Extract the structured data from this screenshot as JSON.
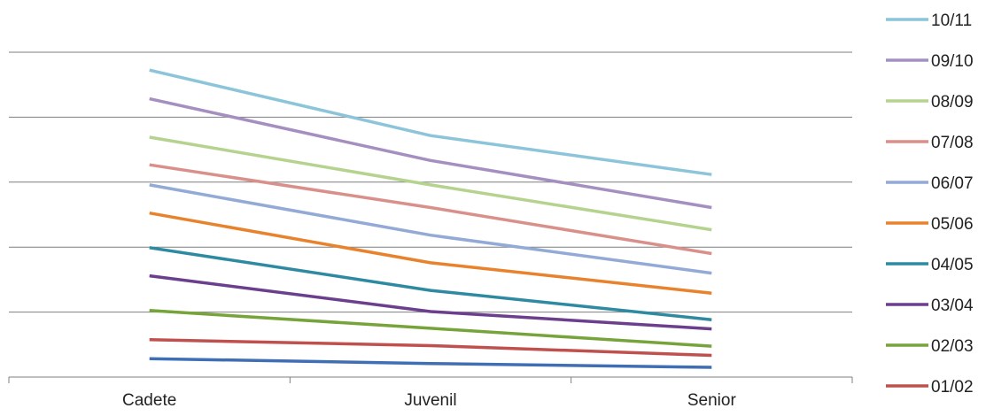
{
  "chart_data": {
    "type": "line",
    "categories": [
      "Cadete",
      "Juvenil",
      "Senior"
    ],
    "ylim": [
      0,
      60
    ],
    "grid": true,
    "legend_position": "right",
    "series": [
      {
        "name": "01/02",
        "color": "#c0504d",
        "values": [
          6.9,
          5.8,
          4.0
        ]
      },
      {
        "name": "02/03",
        "color": "#77a33b",
        "values": [
          12.3,
          9.0,
          5.7
        ]
      },
      {
        "name": "03/04",
        "color": "#6b3f8e",
        "values": [
          18.7,
          12.1,
          8.9
        ]
      },
      {
        "name": "04/05",
        "color": "#2e8aa0",
        "values": [
          23.9,
          16.0,
          10.6
        ]
      },
      {
        "name": "05/06",
        "color": "#e8822c",
        "values": [
          30.3,
          21.1,
          15.5
        ]
      },
      {
        "name": "06/07",
        "color": "#93a9d6",
        "values": [
          35.5,
          26.2,
          19.2
        ]
      },
      {
        "name": "07/08",
        "color": "#d9908b",
        "values": [
          39.2,
          31.3,
          22.8
        ]
      },
      {
        "name": "08/09",
        "color": "#b5d38e",
        "values": [
          44.3,
          35.5,
          27.2
        ]
      },
      {
        "name": "09/10",
        "color": "#a48fc0",
        "values": [
          51.4,
          40.0,
          31.3
        ]
      },
      {
        "name": "10/11",
        "color": "#8cc4d9",
        "values": [
          56.7,
          44.6,
          37.4
        ]
      },
      {
        "name": "",
        "color": "#3f6eb4",
        "values": [
          3.4,
          2.5,
          1.8
        ],
        "in_legend": false
      }
    ]
  }
}
